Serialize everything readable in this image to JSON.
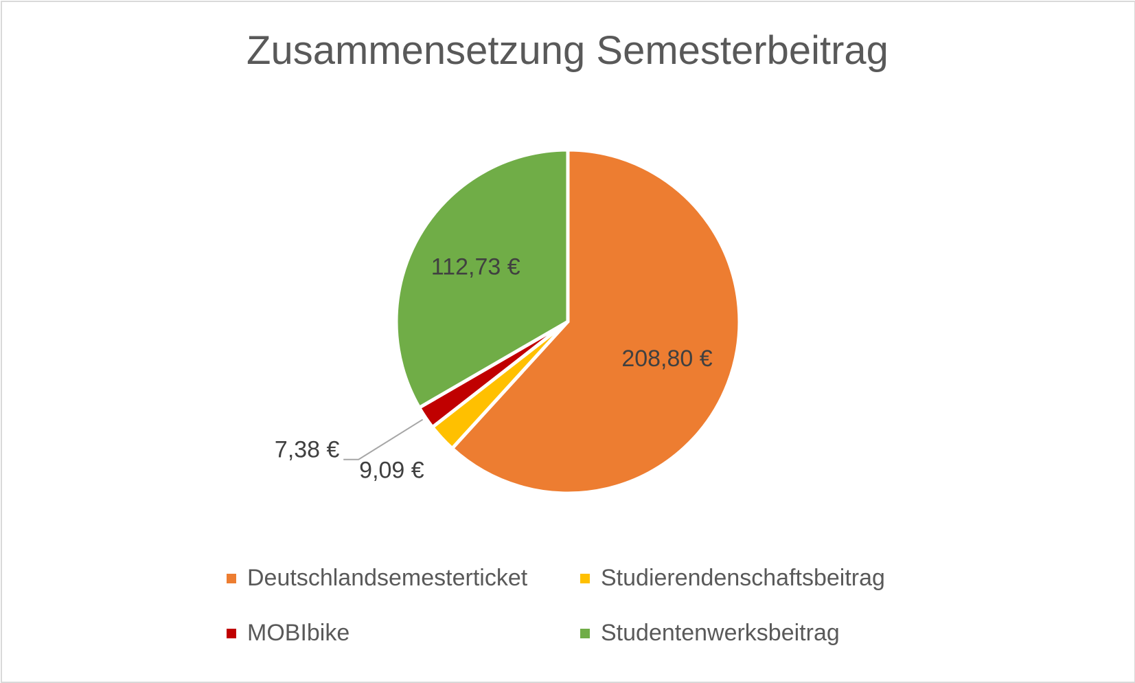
{
  "chart_data": {
    "type": "pie",
    "title": "Zusammensetzung Semesterbeitrag",
    "series": [
      {
        "name": "",
        "slices": [
          {
            "label": "Deutschlandsemesterticket",
            "value": 208.8,
            "display": "208,80 €",
            "color": "#ED7D31"
          },
          {
            "label": "Studierendenschaftsbeitrag",
            "value": 9.09,
            "display": "9,09 €",
            "color": "#FFC000"
          },
          {
            "label": "MOBIbike",
            "value": 7.38,
            "display": "7,38 €",
            "color": "#C00000"
          },
          {
            "label": "Studentenwerksbeitrag",
            "value": 112.73,
            "display": "112,73 €",
            "color": "#70AD47"
          }
        ]
      }
    ],
    "legend_position": "bottom"
  }
}
